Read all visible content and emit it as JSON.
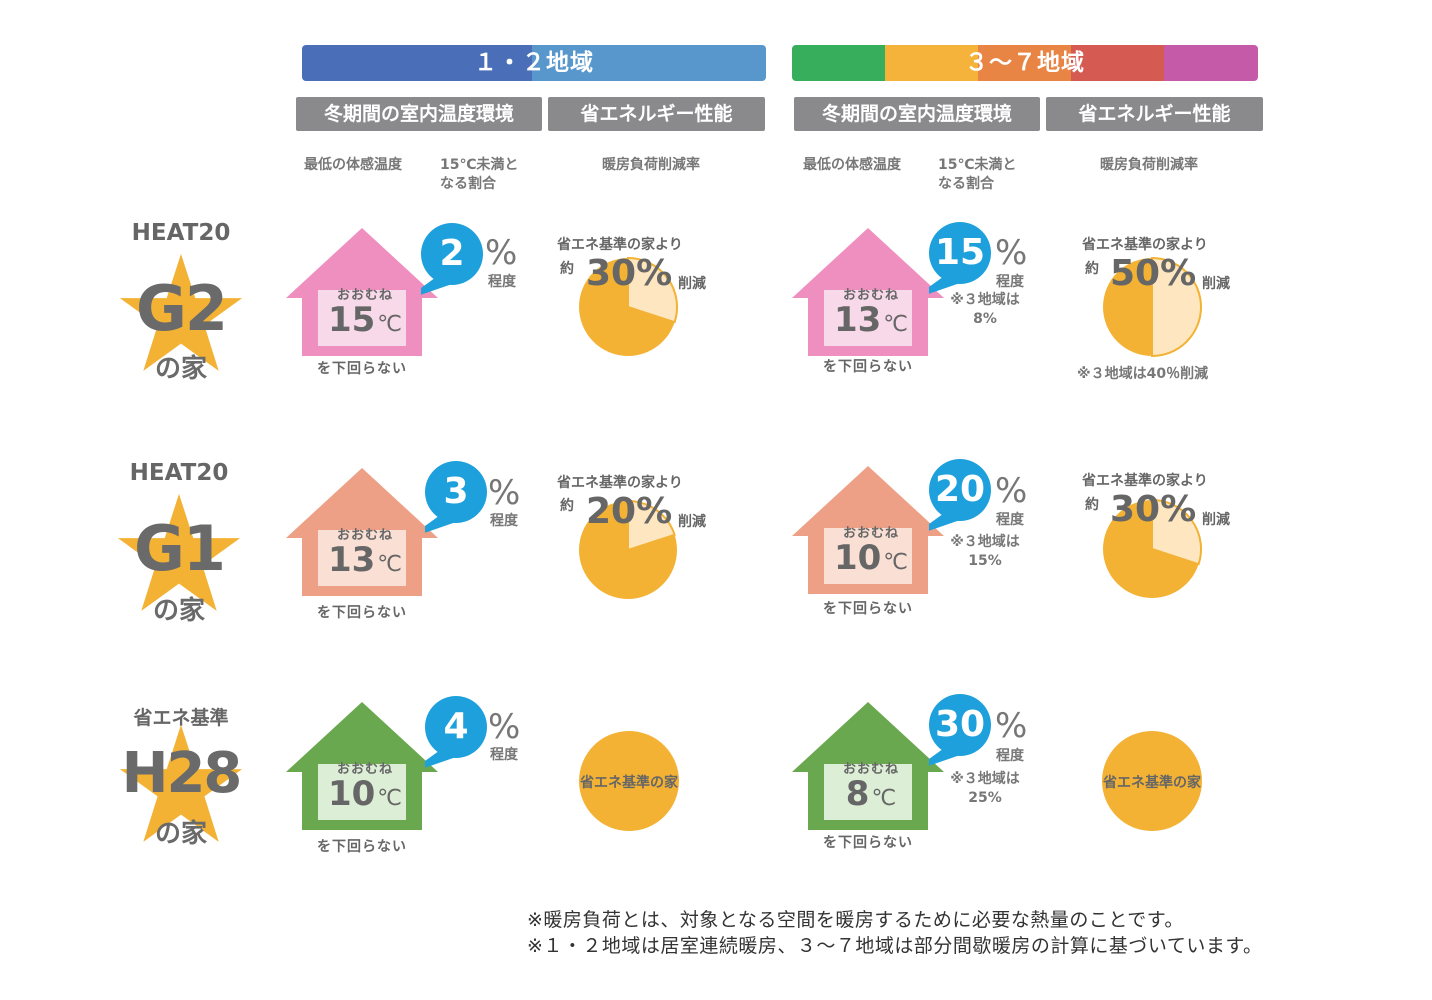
{
  "colors": {
    "bar12_left": "#4a6fb8",
    "bar12_right": "#5797cc",
    "bar37": [
      "#37ae5c",
      "#f5b33c",
      "#e88444",
      "#d45a52",
      "#c45aa8"
    ],
    "header_bg": "#8a8a8c",
    "bubble": "#1ea0dc",
    "pie_main": "#f3b234",
    "pie_light": "#fde6c0",
    "house_pink": "#ee8fbf",
    "house_salmon": "#eda085",
    "house_green": "#6aa84f"
  },
  "regions": {
    "r12": {
      "title": "１・２地域",
      "col_header_temp": "冬期間の室内温度環境",
      "col_header_energy": "省エネルギー性能"
    },
    "r37": {
      "title": "３～７地域",
      "col_header_temp": "冬期間の室内温度環境",
      "col_header_energy": "省エネルギー性能"
    }
  },
  "subheaders": {
    "min_temp": "最低の体感温度",
    "under15": "15℃未満と\nなる割合",
    "reduction": "暖房負荷削減率"
  },
  "common": {
    "oomune": "おおむね",
    "unit_c": "℃",
    "below": "を下回らない",
    "pct": "%",
    "teido": "程度",
    "base_prefix": "省エネ基準の家より",
    "yaku": "約",
    "sakugen": "削減",
    "base_house": "省エネ基準の家"
  },
  "rows": [
    {
      "top": "HEAT20",
      "big": "G2",
      "no": "の家",
      "r12": {
        "temp": "15",
        "ratio": "2",
        "reduction": "30%"
      },
      "r37": {
        "temp": "13",
        "ratio": "15",
        "ratio_note": "※３地域は\n8%",
        "reduction": "50%",
        "reduction_note": "※３地域は40％削減"
      }
    },
    {
      "top": "HEAT20",
      "big": "G1",
      "no": "の家",
      "r12": {
        "temp": "13",
        "ratio": "3",
        "reduction": "20%"
      },
      "r37": {
        "temp": "10",
        "ratio": "20",
        "ratio_note": "※３地域は\n15%",
        "reduction": "30%"
      }
    },
    {
      "top": "省エネ基準",
      "big": "H28",
      "no": "の家",
      "r12": {
        "temp": "10",
        "ratio": "4"
      },
      "r37": {
        "temp": "8",
        "ratio": "30",
        "ratio_note": "※３地域は\n25%"
      }
    }
  ],
  "footnotes": [
    "※暖房負荷とは、対象となる空間を暖房するために必要な熱量のことです。",
    "※１・２地域は居室連続暖房、３～７地域は部分間歇暖房の計算に基づいています。"
  ],
  "chart_data": [
    {
      "type": "table",
      "title": "",
      "columns": [
        "地域",
        "家",
        "最低の体感温度(℃)",
        "15℃未満となる割合(%)",
        "暖房負荷削減率(%)"
      ],
      "rows": [
        [
          "１・２地域",
          "HEAT20 G2",
          15,
          2,
          30
        ],
        [
          "１・２地域",
          "HEAT20 G1",
          13,
          3,
          20
        ],
        [
          "１・２地域",
          "省エネ基準 H28",
          10,
          4,
          0
        ],
        [
          "３～７地域",
          "HEAT20 G2",
          13,
          15,
          50
        ],
        [
          "３～７地域",
          "HEAT20 G1",
          10,
          20,
          30
        ],
        [
          "３～７地域",
          "省エネ基準 H28",
          8,
          30,
          0
        ]
      ]
    },
    {
      "type": "pie",
      "series": [
        {
          "values": [
            30,
            70
          ]
        },
        {
          "values": [
            20,
            80
          ]
        },
        {
          "values": [
            50,
            50
          ]
        },
        {
          "values": [
            30,
            70
          ]
        }
      ]
    }
  ]
}
